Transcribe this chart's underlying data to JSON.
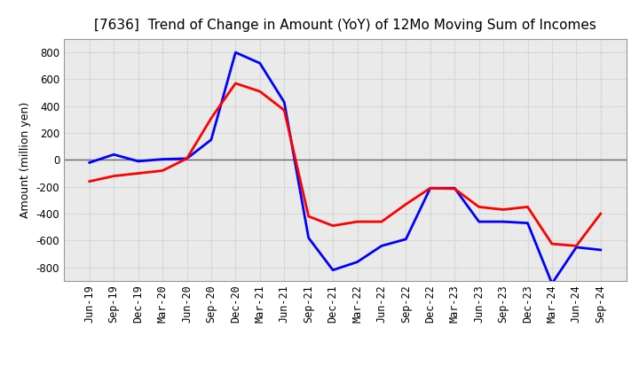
{
  "title": "[7636]  Trend of Change in Amount (YoY) of 12Mo Moving Sum of Incomes",
  "ylabel": "Amount (million yen)",
  "ylim": [
    -900,
    900
  ],
  "yticks": [
    -800,
    -600,
    -400,
    -200,
    0,
    200,
    400,
    600,
    800
  ],
  "x_labels": [
    "Jun-19",
    "Sep-19",
    "Dec-19",
    "Mar-20",
    "Jun-20",
    "Sep-20",
    "Dec-20",
    "Mar-21",
    "Jun-21",
    "Sep-21",
    "Dec-21",
    "Mar-22",
    "Jun-22",
    "Sep-22",
    "Dec-22",
    "Mar-23",
    "Jun-23",
    "Sep-23",
    "Dec-23",
    "Mar-24",
    "Jun-24",
    "Sep-24"
  ],
  "ordinary_income": [
    -20,
    40,
    -10,
    5,
    10,
    150,
    800,
    720,
    430,
    -580,
    -820,
    -760,
    -640,
    -590,
    -210,
    -210,
    -460,
    -460,
    -470,
    -920,
    -650,
    -670
  ],
  "net_income": [
    -160,
    -120,
    -100,
    -80,
    10,
    310,
    570,
    510,
    370,
    -420,
    -490,
    -460,
    -460,
    -330,
    -210,
    -215,
    -350,
    -370,
    -350,
    -625,
    -640,
    -400
  ],
  "ordinary_color": "#0000FF",
  "net_color": "#FF0000",
  "line_width": 2.0,
  "background_color": "#FFFFFF",
  "plot_bg_color": "#EAEAEA",
  "grid_color": "#BBBBBB",
  "title_fontsize": 11,
  "label_fontsize": 9,
  "tick_fontsize": 8.5
}
